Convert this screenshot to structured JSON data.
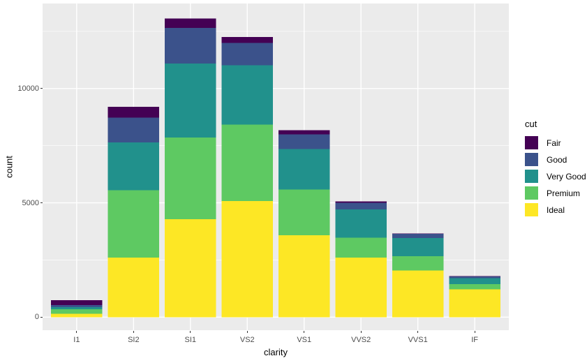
{
  "figure": {
    "y_axis_title": "count",
    "x_axis_title": "clarity",
    "y_ticks": [
      {
        "value": 0,
        "label": "0"
      },
      {
        "value": 5000,
        "label": "5000"
      },
      {
        "value": 10000,
        "label": "10000"
      }
    ]
  },
  "legend": {
    "title": "cut",
    "entries": [
      {
        "label": "Fair",
        "color": "#440154"
      },
      {
        "label": "Good",
        "color": "#3B528B"
      },
      {
        "label": "Very Good",
        "color": "#21918C"
      },
      {
        "label": "Premium",
        "color": "#5EC962"
      },
      {
        "label": "Ideal",
        "color": "#FDE725"
      }
    ]
  },
  "colors": {
    "panel_background": "#EBEBEB",
    "gridline": "#FFFFFF",
    "tick_label": "#4D4D4D",
    "tick_mark": "#333333"
  },
  "chart_data": {
    "type": "bar",
    "stacked": true,
    "title": "",
    "xlabel": "clarity",
    "ylabel": "count",
    "legend_title": "cut",
    "legend_position": "right",
    "categories": [
      "I1",
      "SI2",
      "SI1",
      "VS2",
      "VS1",
      "VVS2",
      "VVS1",
      "IF"
    ],
    "series": [
      {
        "name": "Fair",
        "color": "#440154",
        "values": [
          210,
          466,
          408,
          261,
          170,
          69,
          17,
          9
        ]
      },
      {
        "name": "Good",
        "color": "#3B528B",
        "values": [
          96,
          1081,
          1560,
          978,
          648,
          286,
          186,
          71
        ]
      },
      {
        "name": "Very Good",
        "color": "#21918C",
        "values": [
          84,
          2100,
          3240,
          2591,
          1775,
          1235,
          789,
          268
        ]
      },
      {
        "name": "Premium",
        "color": "#5EC962",
        "values": [
          205,
          2949,
          3575,
          3357,
          1989,
          870,
          616,
          230
        ]
      },
      {
        "name": "Ideal",
        "color": "#FDE725",
        "values": [
          146,
          2598,
          4282,
          5071,
          3589,
          2606,
          2047,
          1212
        ]
      }
    ],
    "category_totals": [
      741,
      9194,
      13065,
      12258,
      8171,
      5066,
      3655,
      1790
    ],
    "stack_order_bottom_to_top": [
      "Ideal",
      "Premium",
      "Very Good",
      "Good",
      "Fair"
    ],
    "ylim": [
      0,
      13719
    ],
    "y_major_gridlines": [
      0,
      5000,
      10000
    ],
    "y_minor_gridlines": [
      2500,
      7500,
      12500
    ],
    "grid": true
  }
}
